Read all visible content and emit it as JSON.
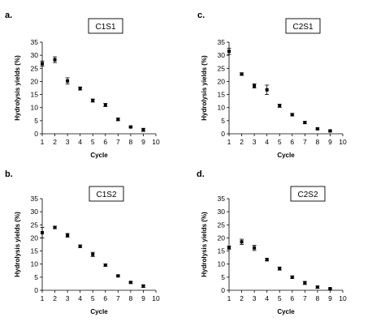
{
  "chart_data": [
    {
      "type": "scatter",
      "panel": "a.",
      "title": "C1S1",
      "xlabel": "Cycle",
      "ylabel": "Hydrolysis yields (%)",
      "xlim": [
        1,
        10
      ],
      "ylim": [
        0,
        35
      ],
      "xticks": [
        "1",
        "2",
        "3",
        "4",
        "5",
        "6",
        "7",
        "8",
        "9",
        "10"
      ],
      "yticks": [
        "0",
        "5",
        "10",
        "15",
        "20",
        "25",
        "30",
        "35"
      ],
      "x": [
        1,
        2,
        3,
        4,
        5,
        6,
        7,
        8,
        9
      ],
      "y": [
        26.8,
        28.3,
        20.2,
        17.3,
        12.7,
        11.0,
        5.5,
        2.6,
        1.5
      ],
      "err": [
        1.0,
        1.1,
        1.2,
        0.6,
        0.6,
        0.6,
        0.5,
        0.3,
        0.6
      ]
    },
    {
      "type": "scatter",
      "panel": "c.",
      "title": "C2S1",
      "xlabel": "Cycle",
      "ylabel": "Hydrolysis yields (%)",
      "xlim": [
        1,
        10
      ],
      "ylim": [
        0,
        35
      ],
      "xticks": [
        "1",
        "2",
        "3",
        "4",
        "5",
        "6",
        "7",
        "8",
        "9",
        "10"
      ],
      "yticks": [
        "0",
        "5",
        "10",
        "15",
        "20",
        "25",
        "30",
        "35"
      ],
      "x": [
        1,
        2,
        3,
        4,
        5,
        6,
        7,
        8,
        9
      ],
      "y": [
        31.5,
        22.8,
        18.3,
        16.8,
        10.7,
        7.3,
        4.3,
        1.9,
        1.1
      ],
      "err": [
        1.2,
        0.5,
        0.8,
        1.8,
        0.6,
        0.5,
        0.4,
        0.3,
        0.3
      ]
    },
    {
      "type": "scatter",
      "panel": "b.",
      "title": "C1S2",
      "xlabel": "Cycle",
      "ylabel": "Hydrolysis yields (%)",
      "xlim": [
        1,
        10
      ],
      "ylim": [
        0,
        35
      ],
      "xticks": [
        "1",
        "2",
        "3",
        "4",
        "5",
        "6",
        "7",
        "8",
        "9",
        "10"
      ],
      "yticks": [
        "0",
        "5",
        "10",
        "15",
        "20",
        "25",
        "30",
        "35"
      ],
      "x": [
        1,
        2,
        3,
        4,
        5,
        6,
        7,
        8,
        9
      ],
      "y": [
        22.0,
        24.0,
        21.0,
        16.8,
        13.7,
        9.6,
        5.5,
        3.0,
        1.6
      ],
      "err": [
        2.0,
        0.5,
        0.7,
        0.5,
        0.8,
        0.5,
        0.3,
        0.3,
        0.5
      ]
    },
    {
      "type": "scatter",
      "panel": "d.",
      "title": "C2S2",
      "xlabel": "Cycle",
      "ylabel": "Hydrolysis yields (%)",
      "xlim": [
        1,
        10
      ],
      "ylim": [
        0,
        35
      ],
      "xticks": [
        "1",
        "2",
        "3",
        "4",
        "5",
        "6",
        "7",
        "8",
        "9",
        "10"
      ],
      "yticks": [
        "0",
        "5",
        "10",
        "15",
        "20",
        "25",
        "30",
        "35"
      ],
      "x": [
        1,
        2,
        3,
        4,
        5,
        6,
        7,
        8,
        9
      ],
      "y": [
        16.3,
        18.5,
        16.2,
        11.7,
        8.3,
        5.0,
        2.8,
        1.2,
        0.6
      ],
      "err": [
        0.6,
        1.0,
        1.0,
        0.5,
        0.6,
        0.5,
        0.6,
        0.4,
        0.3
      ]
    }
  ]
}
